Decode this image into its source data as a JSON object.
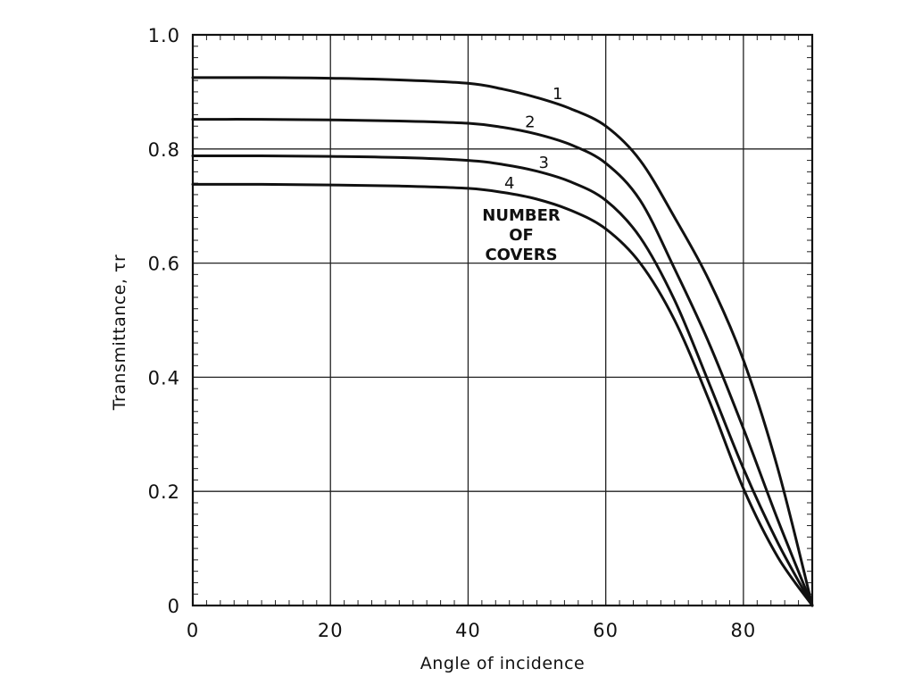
{
  "chart_data": {
    "type": "line",
    "title": "",
    "xlabel": "Angle of incidence",
    "ylabel": "Transmittance, τr",
    "xlim": [
      0,
      90
    ],
    "ylim": [
      0,
      1.0
    ],
    "grid": true,
    "x_ticks": [
      0,
      20,
      40,
      60,
      80
    ],
    "x_tick_labels": [
      "0",
      "20",
      "40",
      "60",
      "80"
    ],
    "y_ticks": [
      0,
      0.2,
      0.4,
      0.6,
      0.8,
      1.0
    ],
    "y_tick_labels": [
      "0",
      "0.2",
      "0.4",
      "0.6",
      "0.8",
      "1.0"
    ],
    "annotation": [
      "NUMBER",
      "OF",
      "COVERS"
    ],
    "series": [
      {
        "name": "1",
        "x": [
          0,
          10,
          20,
          30,
          40,
          45,
          50,
          55,
          60,
          65,
          70,
          75,
          80,
          85,
          90
        ],
        "y": [
          0.925,
          0.925,
          0.924,
          0.921,
          0.915,
          0.905,
          0.89,
          0.87,
          0.84,
          0.78,
          0.68,
          0.57,
          0.43,
          0.24,
          0
        ]
      },
      {
        "name": "2",
        "x": [
          0,
          10,
          20,
          30,
          40,
          45,
          50,
          55,
          60,
          65,
          70,
          75,
          80,
          85,
          90
        ],
        "y": [
          0.852,
          0.852,
          0.851,
          0.849,
          0.845,
          0.838,
          0.826,
          0.807,
          0.775,
          0.71,
          0.59,
          0.46,
          0.31,
          0.15,
          0
        ]
      },
      {
        "name": "3",
        "x": [
          0,
          10,
          20,
          30,
          40,
          45,
          50,
          55,
          60,
          65,
          70,
          75,
          80,
          85,
          90
        ],
        "y": [
          0.788,
          0.788,
          0.787,
          0.785,
          0.78,
          0.773,
          0.761,
          0.742,
          0.71,
          0.645,
          0.535,
          0.39,
          0.24,
          0.11,
          0
        ]
      },
      {
        "name": "4",
        "x": [
          0,
          10,
          20,
          30,
          40,
          45,
          50,
          55,
          60,
          65,
          70,
          75,
          80,
          85,
          90
        ],
        "y": [
          0.738,
          0.738,
          0.737,
          0.735,
          0.731,
          0.724,
          0.712,
          0.692,
          0.66,
          0.6,
          0.5,
          0.36,
          0.205,
          0.085,
          0
        ]
      }
    ]
  }
}
